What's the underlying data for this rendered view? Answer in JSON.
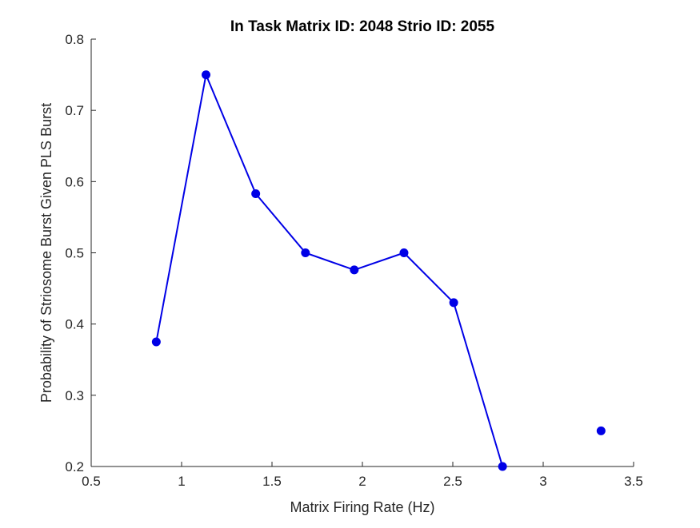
{
  "chart_data": {
    "type": "line",
    "title": "In Task Matrix ID: 2048 Strio ID: 2055",
    "xlabel": "Matrix Firing Rate (Hz)",
    "ylabel": "Probability of Striosome Burst Given PLS Burst",
    "xlim": [
      0.5,
      3.5
    ],
    "ylim": [
      0.2,
      0.8
    ],
    "xticks": [
      0.5,
      1,
      1.5,
      2,
      2.5,
      3,
      3.5
    ],
    "xtick_labels": [
      "0.5",
      "1",
      "1.5",
      "2",
      "2.5",
      "3",
      "3.5"
    ],
    "yticks": [
      0.2,
      0.3,
      0.4,
      0.5,
      0.6,
      0.7,
      0.8
    ],
    "ytick_labels": [
      "0.2",
      "0.3",
      "0.4",
      "0.5",
      "0.6",
      "0.7",
      "0.8"
    ],
    "grid": false,
    "legend": false,
    "series": [
      {
        "color": "#0000e6",
        "marker": "circle",
        "x": [
          0.86,
          1.135,
          1.41,
          1.685,
          1.955,
          2.23,
          2.505,
          2.775,
          3.32
        ],
        "y": [
          0.375,
          0.75,
          0.583,
          0.5,
          0.476,
          0.5,
          0.43,
          0.2,
          0.25
        ],
        "connected": [
          true,
          true,
          true,
          true,
          true,
          true,
          true,
          true,
          false
        ]
      }
    ]
  }
}
